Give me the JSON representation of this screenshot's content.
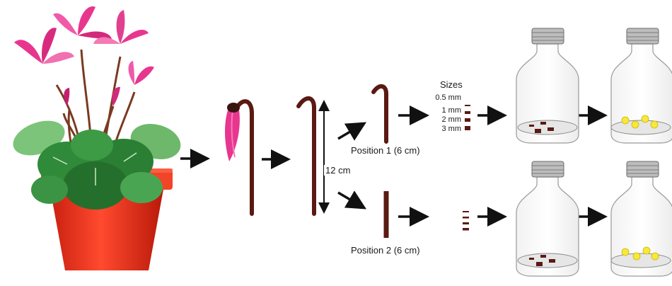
{
  "labels": {
    "length": "12 cm",
    "position_1": "Position 1 (6 cm)",
    "position_2": "Position 2 (6 cm)",
    "sizes_title": "Sizes"
  },
  "sizes": [
    "0.5 mm",
    "1 mm",
    "2 mm",
    "3 mm"
  ],
  "colors": {
    "stem": "#5a1a12",
    "flower": "#e8368f",
    "leaf": "#2f8a3a",
    "pot": "#e8321e",
    "seed": "#f7e83a"
  }
}
